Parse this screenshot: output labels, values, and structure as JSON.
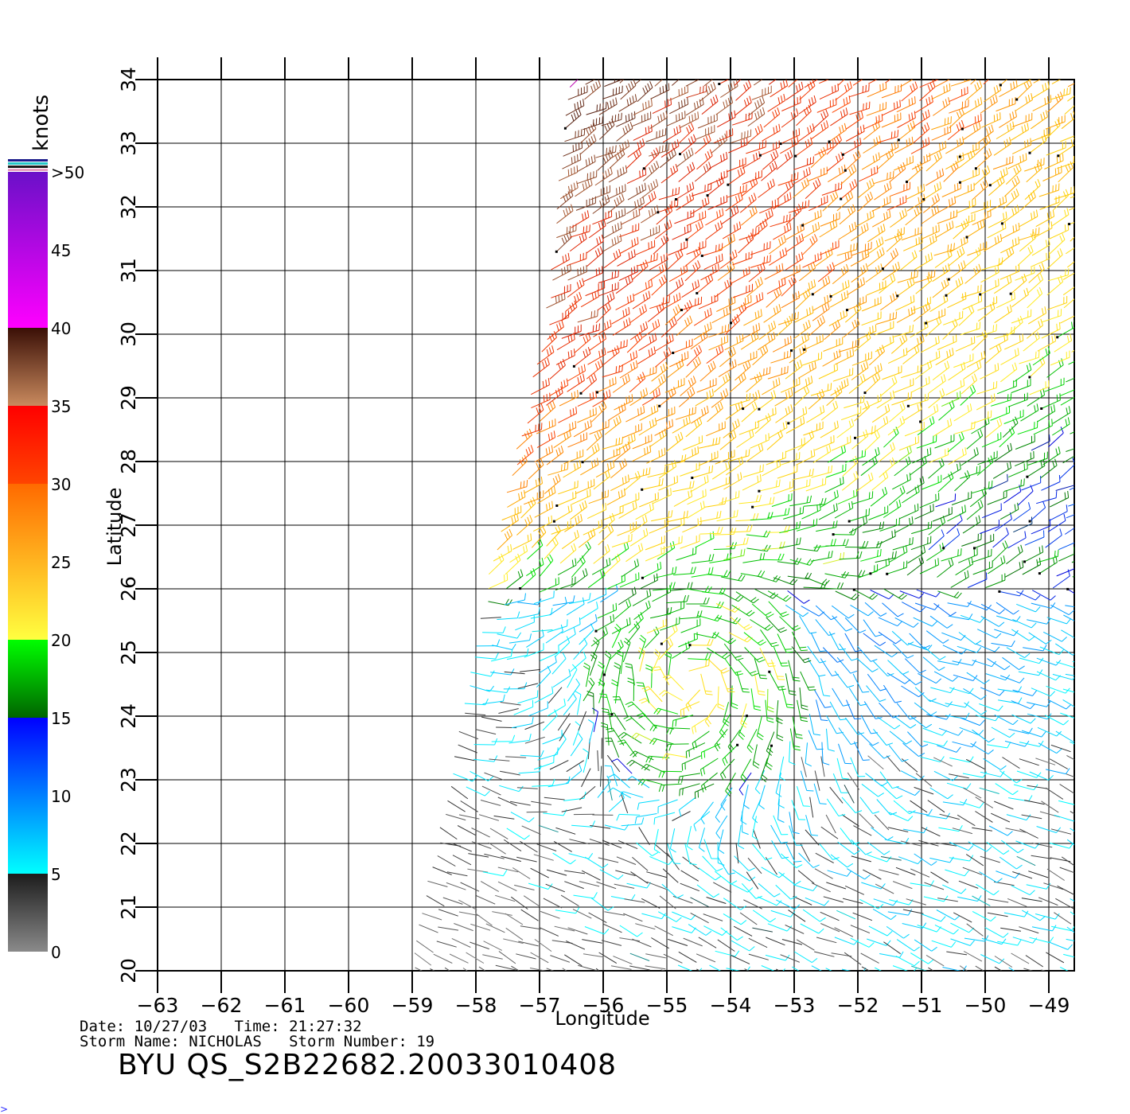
{
  "legend": {
    "unit": "knots",
    "labels": [
      ">50",
      "45",
      "40",
      "35",
      "30",
      "25",
      "20",
      "15",
      "10",
      "5",
      "0"
    ],
    "bands": [
      {
        "range": "0-5",
        "from": "#8a8a8a",
        "to": "#1c1c1c"
      },
      {
        "range": "5-15",
        "from": "#00ffff",
        "to": "#0000ff"
      },
      {
        "range": "15-20",
        "from": "#006400",
        "to": "#00ff00"
      },
      {
        "range": "20-30",
        "from": "#ffff40",
        "to": "#ff6a00"
      },
      {
        "range": "30-35",
        "from": "#ff4400",
        "to": "#ff0000"
      },
      {
        "range": "35-40",
        "from": "#c98a5e",
        "to": "#3a0f06"
      },
      {
        "range": "40-50",
        "from": "#ff00ff",
        "to": "#6a10c8"
      }
    ]
  },
  "map": {
    "xlabel": "Longitude",
    "ylabel": "Latitude",
    "lon_ticks": [
      -63,
      -62,
      -61,
      -60,
      -59,
      -58,
      -57,
      -56,
      -55,
      -54,
      -53,
      -52,
      -51,
      -50,
      -49
    ],
    "lat_ticks": [
      20,
      21,
      22,
      23,
      24,
      25,
      26,
      27,
      28,
      29,
      30,
      31,
      32,
      33,
      34
    ],
    "lon_range": [
      -63,
      -48.6
    ],
    "lat_range": [
      20,
      34
    ],
    "swath_edge": [
      [
        -56.5,
        34
      ],
      [
        -56.9,
        30
      ],
      [
        -57.6,
        27
      ],
      [
        -58.2,
        24
      ],
      [
        -59.0,
        20
      ]
    ],
    "storm_center": {
      "lon": -54.6,
      "lat": 24.6
    }
  },
  "info": {
    "date_line": "Date: 10/27/03   Time: 21:27:32",
    "storm_line": "Storm Name: NICHOLAS   Storm Number: 19",
    "file_id": "BYU  QS_S2B22682.20033010408"
  }
}
